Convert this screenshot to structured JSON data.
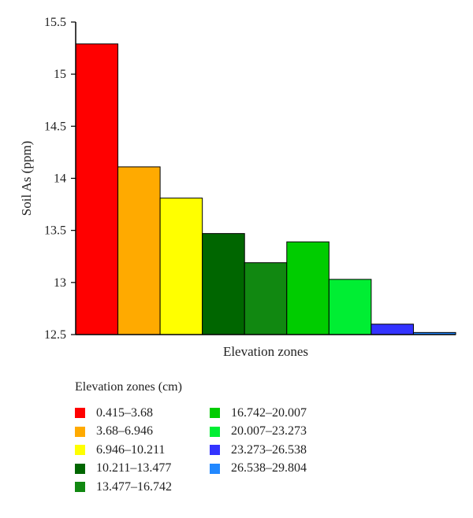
{
  "chart_data": {
    "type": "bar",
    "title": "",
    "xlabel": "Elevation zones",
    "ylabel": "Soil As (ppm)",
    "ylim": [
      12.5,
      15.5
    ],
    "yticks": [
      "12.5",
      "13",
      "13.5",
      "14",
      "14.5",
      "15",
      "15.5"
    ],
    "grid": false,
    "legend_title": "Elevation zones (cm)",
    "legend_position": "bottom",
    "categories": [
      "0.415–3.68",
      "3.68–6.946",
      "6.946–10.211",
      "10.211–13.477",
      "13.477–16.742",
      "16.742–20.007",
      "20.007–23.273",
      "23.273–26.538",
      "26.538–29.804"
    ],
    "values": [
      15.29,
      14.11,
      13.81,
      13.47,
      13.19,
      13.39,
      13.03,
      12.6,
      12.52
    ],
    "colors": [
      "#ff0000",
      "#ffaa00",
      "#ffff00",
      "#006600",
      "#118811",
      "#00cc00",
      "#00ee33",
      "#3333ff",
      "#2288ff"
    ]
  }
}
